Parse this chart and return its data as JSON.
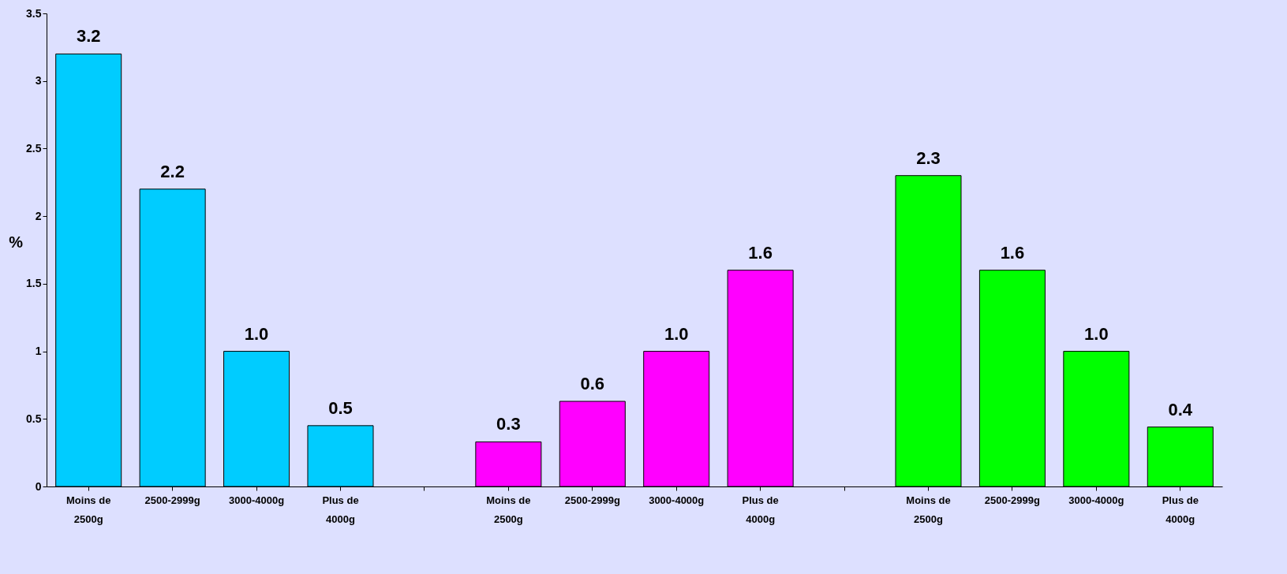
{
  "chart_data": {
    "type": "bar",
    "ylabel": "%",
    "categories": [
      "Moins de 2500g",
      "2500-2999g",
      "3000-4000g",
      "Plus de 4000g",
      null,
      "Moins de 2500g",
      "2500-2999g",
      "3000-4000g",
      "Plus de 4000g",
      null,
      "Moins de 2500g",
      "2500-2999g",
      "3000-4000g",
      "Plus de 4000g"
    ],
    "values": [
      3.2,
      2.2,
      1.0,
      0.45,
      null,
      0.33,
      0.63,
      1.0,
      1.6,
      null,
      2.3,
      1.6,
      1.0,
      0.44
    ],
    "value_labels": [
      "3.2",
      "2.2",
      "1.0",
      "0.5",
      null,
      "0.3",
      "0.6",
      "1.0",
      "1.6",
      null,
      "2.3",
      "1.6",
      "1.0",
      "0.4"
    ],
    "colors": [
      "#00ccff",
      "#00ccff",
      "#00ccff",
      "#00ccff",
      null,
      "#ff00ff",
      "#ff00ff",
      "#ff00ff",
      "#ff00ff",
      null,
      "#00ff00",
      "#00ff00",
      "#00ff00",
      "#00ff00"
    ],
    "ylim": [
      0,
      3.5
    ],
    "yticks": [
      0,
      0.5,
      1,
      1.5,
      2,
      2.5,
      3,
      3.5
    ],
    "grid": false
  }
}
